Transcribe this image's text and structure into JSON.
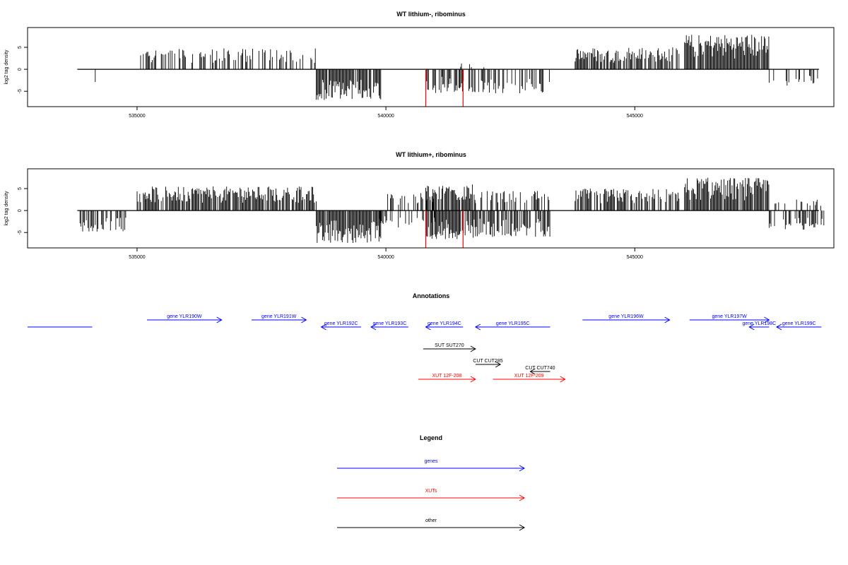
{
  "chart_data": [
    {
      "type": "bar",
      "title": "WT lithium-, ribominus",
      "ylabel": "log2 tag density",
      "xlabel": "",
      "xlim": [
        532800,
        549000
      ],
      "ylim": [
        -8.5,
        9.5
      ],
      "x_ticks": [
        535000,
        540000,
        545000
      ],
      "x_tick_labels": [
        "535000",
        "540000",
        "545000"
      ],
      "y_ticks": [
        -5,
        0,
        5
      ],
      "y_tick_labels": [
        "-5",
        "0",
        "5"
      ],
      "regions": [
        {
          "start": 533800,
          "end": 534400,
          "sign": -1,
          "max": 4.2,
          "density": 0.14
        },
        {
          "start": 535000,
          "end": 538600,
          "sign": 1,
          "max": 4.8,
          "density": 0.45
        },
        {
          "start": 538600,
          "end": 539900,
          "sign": -1,
          "max": 7.0,
          "density": 0.9
        },
        {
          "start": 540800,
          "end": 543300,
          "sign": -1,
          "max": 5.5,
          "density": 0.5
        },
        {
          "start": 541500,
          "end": 542000,
          "sign": 1,
          "max": 1.5,
          "density": 0.25
        },
        {
          "start": 543800,
          "end": 545900,
          "sign": 1,
          "max": 5.0,
          "density": 0.75
        },
        {
          "start": 546000,
          "end": 547700,
          "sign": 1,
          "max": 8.0,
          "density": 0.95
        },
        {
          "start": 547700,
          "end": 548700,
          "sign": -1,
          "max": 4.0,
          "density": 0.18
        }
      ],
      "red_marks": [
        {
          "x": 540800,
          "y": -8.5
        },
        {
          "x": 541550,
          "y": -8.5
        }
      ],
      "bar_color": "#000000",
      "mark_color": "#ff0000"
    },
    {
      "type": "bar",
      "title": "WT lithium+, ribominus",
      "ylabel": "log2 tag density",
      "xlabel": "",
      "xlim": [
        532800,
        549000
      ],
      "ylim": [
        -8.5,
        9.5
      ],
      "x_ticks": [
        535000,
        540000,
        545000
      ],
      "x_tick_labels": [
        "535000",
        "540000",
        "545000"
      ],
      "y_ticks": [
        -5,
        0,
        5
      ],
      "y_tick_labels": [
        "-5",
        "0",
        "5"
      ],
      "regions": [
        {
          "start": 533800,
          "end": 534800,
          "sign": -1,
          "max": 5.0,
          "density": 0.55
        },
        {
          "start": 535000,
          "end": 538600,
          "sign": 1,
          "max": 5.5,
          "density": 0.85
        },
        {
          "start": 538600,
          "end": 539900,
          "sign": -1,
          "max": 7.5,
          "density": 0.95
        },
        {
          "start": 539800,
          "end": 541000,
          "sign": -1,
          "max": 4.0,
          "density": 0.45
        },
        {
          "start": 540000,
          "end": 541000,
          "sign": 1,
          "max": 4.0,
          "density": 0.35
        },
        {
          "start": 540800,
          "end": 541800,
          "sign": 1,
          "max": 6.0,
          "density": 0.8
        },
        {
          "start": 540800,
          "end": 541800,
          "sign": -1,
          "max": 6.5,
          "density": 0.8
        },
        {
          "start": 541800,
          "end": 543300,
          "sign": -1,
          "max": 6.0,
          "density": 0.75
        },
        {
          "start": 541800,
          "end": 543300,
          "sign": 1,
          "max": 4.5,
          "density": 0.5
        },
        {
          "start": 543800,
          "end": 545900,
          "sign": 1,
          "max": 5.0,
          "density": 0.75
        },
        {
          "start": 546000,
          "end": 547700,
          "sign": 1,
          "max": 7.5,
          "density": 0.95
        },
        {
          "start": 547700,
          "end": 548800,
          "sign": -1,
          "max": 4.5,
          "density": 0.45
        },
        {
          "start": 547800,
          "end": 548800,
          "sign": 1,
          "max": 2.5,
          "density": 0.25
        }
      ],
      "red_marks": [
        {
          "x": 540800,
          "y": -8.5
        },
        {
          "x": 541550,
          "y": -8.5
        }
      ],
      "bar_color": "#000000",
      "mark_color": "#ff0000"
    }
  ],
  "annotations": {
    "title": "Annotations",
    "colors": {
      "gene": "#0000ff",
      "xut": "#ff0000",
      "other": "#000000"
    },
    "features": [
      {
        "label": "",
        "start": 532800,
        "end": 534100,
        "dir": "none",
        "kind": "gene",
        "row": 2
      },
      {
        "label": "gene YLR190W",
        "start": 535200,
        "end": 536700,
        "dir": "+",
        "kind": "gene",
        "row": 1
      },
      {
        "label": "gene YLR191W",
        "start": 537300,
        "end": 538400,
        "dir": "+",
        "kind": "gene",
        "row": 1
      },
      {
        "label": "gene YLR192C",
        "start": 538700,
        "end": 539500,
        "dir": "-",
        "kind": "gene",
        "row": 2
      },
      {
        "label": "gene YLR193C",
        "start": 539700,
        "end": 540450,
        "dir": "-",
        "kind": "gene",
        "row": 2
      },
      {
        "label": "gene YLR194C",
        "start": 540800,
        "end": 541550,
        "dir": "-",
        "kind": "gene",
        "row": 2
      },
      {
        "label": "gene YLR195C",
        "start": 541800,
        "end": 543300,
        "dir": "-",
        "kind": "gene",
        "row": 2
      },
      {
        "label": "gene YLR196W",
        "start": 543950,
        "end": 545700,
        "dir": "+",
        "kind": "gene",
        "row": 1
      },
      {
        "label": "gene YLR197W",
        "start": 546100,
        "end": 547700,
        "dir": "+",
        "kind": "gene",
        "row": 1
      },
      {
        "label": "gene YLR198C",
        "start": 547300,
        "end": 547700,
        "dir": "-",
        "kind": "gene",
        "row": 2
      },
      {
        "label": "gene YLR199C",
        "start": 547850,
        "end": 548750,
        "dir": "-",
        "kind": "gene",
        "row": 2
      },
      {
        "label": "SUT SUT270",
        "start": 540750,
        "end": 541800,
        "dir": "+",
        "kind": "other",
        "row": 3
      },
      {
        "label": "CUT CUT285",
        "start": 541800,
        "end": 542300,
        "dir": "+",
        "kind": "other",
        "row": 4
      },
      {
        "label": "CUT CUT740",
        "start": 542900,
        "end": 543300,
        "dir": "-",
        "kind": "other",
        "row": 5
      },
      {
        "label": "XUT 12F-208",
        "start": 540650,
        "end": 541800,
        "dir": "+",
        "kind": "xut",
        "row": 6
      },
      {
        "label": "XUT 12F-209",
        "start": 542150,
        "end": 543600,
        "dir": "+",
        "kind": "xut",
        "row": 6
      }
    ]
  },
  "legend": {
    "title": "Legend",
    "items": [
      {
        "label": "genes",
        "color": "#0000ff"
      },
      {
        "label": "XUTs",
        "color": "#ff0000"
      },
      {
        "label": "other",
        "color": "#000000"
      }
    ]
  }
}
